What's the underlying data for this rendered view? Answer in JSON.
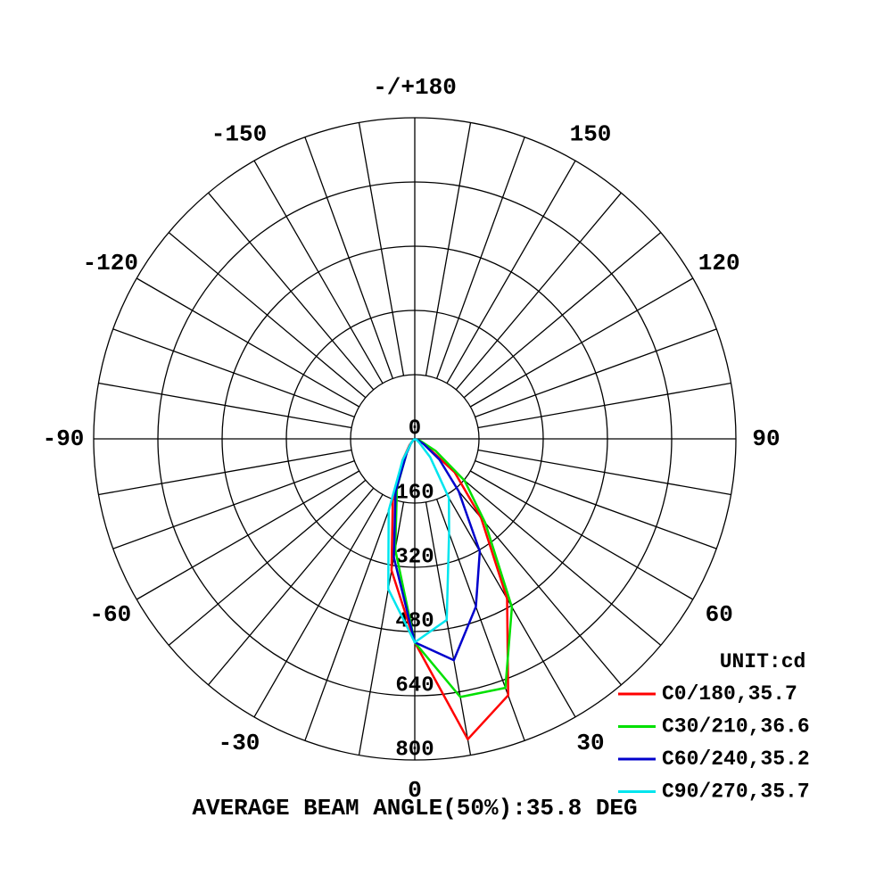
{
  "chart_data": {
    "type": "polar",
    "unit_label": "UNIT:cd",
    "footer": "AVERAGE BEAM ANGLE(50%):35.8 DEG",
    "angles": [
      -90,
      -80,
      -70,
      -60,
      -50,
      -40,
      -30,
      -20,
      -10,
      0,
      10,
      20,
      30,
      40,
      50,
      60,
      70,
      80,
      90
    ],
    "rlim": [
      0,
      800
    ],
    "rticks": [
      0,
      160,
      320,
      480,
      640,
      800
    ],
    "angle_ticks": [
      0,
      30,
      60,
      90,
      120,
      150,
      {
        "value": 180,
        "label": "-/+180"
      },
      -150,
      -120,
      -90,
      -60,
      -30
    ],
    "grid": true,
    "legend": "lower right",
    "series": [
      {
        "name": "C0/180,35.7",
        "color": "#ff0000",
        "values": [
          0,
          0,
          0,
          0,
          5,
          20,
          60,
          160,
          333,
          507,
          760,
          680,
          460,
          257,
          130,
          30,
          5,
          0,
          0
        ]
      },
      {
        "name": "C30/210,36.6",
        "color": "#00e000",
        "values": [
          0,
          0,
          0,
          0,
          5,
          15,
          40,
          130,
          280,
          507,
          653,
          660,
          484,
          273,
          162,
          60,
          15,
          0,
          0
        ]
      },
      {
        "name": "C60/240,35.2",
        "color": "#0000cc",
        "values": [
          0,
          0,
          0,
          0,
          5,
          15,
          40,
          140,
          300,
          507,
          560,
          445,
          324,
          170,
          80,
          25,
          5,
          0,
          0
        ]
      },
      {
        "name": "C90/270,35.7",
        "color": "#00e5ee",
        "values": [
          0,
          0,
          0,
          0,
          5,
          15,
          60,
          190,
          380,
          507,
          458,
          250,
          170,
          60,
          15,
          5,
          0,
          0,
          0
        ]
      }
    ]
  }
}
